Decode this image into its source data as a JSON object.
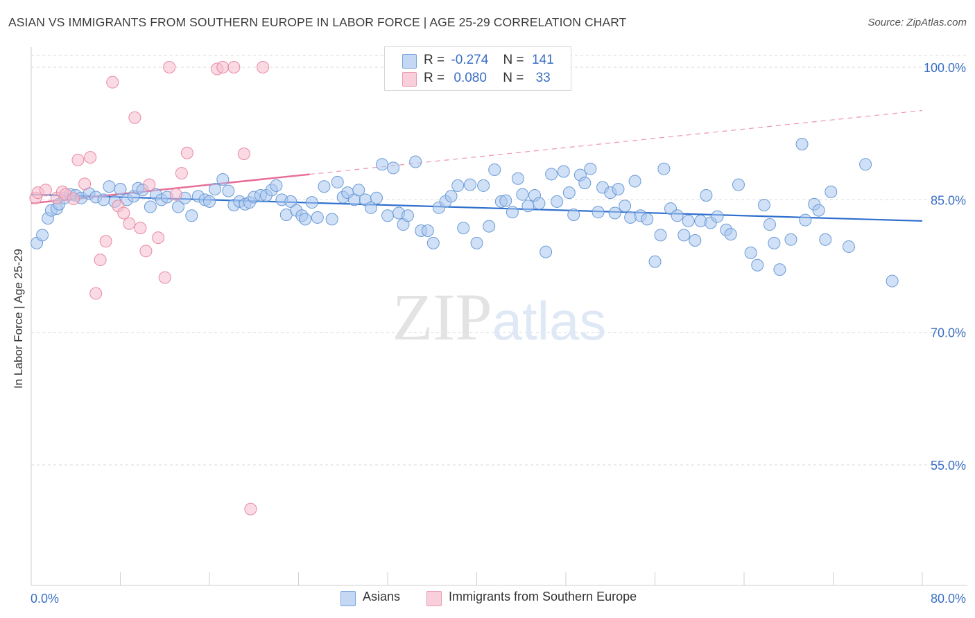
{
  "chart_data": {
    "type": "scatter",
    "title": "ASIAN VS IMMIGRANTS FROM SOUTHERN EUROPE IN LABOR FORCE | AGE 25-29 CORRELATION CHART",
    "source": "Source: ZipAtlas.com",
    "ylabel": "In Labor Force | Age 25-29",
    "xlim": [
      0,
      80
    ],
    "ylim": [
      40,
      102
    ],
    "x_tick_labels": {
      "min": "0.0%",
      "max": "80.0%"
    },
    "y_ticks": [
      {
        "value": 100,
        "label": "100.0%"
      },
      {
        "value": 85,
        "label": "85.0%"
      },
      {
        "value": 70,
        "label": "70.0%"
      },
      {
        "value": 55,
        "label": "55.0%"
      }
    ],
    "grid": true,
    "legend_position": "top-center",
    "watermark": "ZIPatlas",
    "stats": [
      {
        "r_label": "R =",
        "r": "-0.274",
        "n_label": "N =",
        "n": "141"
      },
      {
        "r_label": "R =",
        "r": "0.080",
        "n_label": "N =",
        "n": "33"
      }
    ],
    "series": [
      {
        "name": "Asians",
        "color": "#a9c6ee",
        "edge": "#6b9bd6",
        "trend_color": "#2f6fce",
        "trend": {
          "x0": 0,
          "y0": 85.6,
          "x1": 80,
          "y1": 82.6,
          "dashed_from": null
        },
        "points": [
          [
            0.5,
            80.1
          ],
          [
            1,
            81
          ],
          [
            1.5,
            82.9
          ],
          [
            1.8,
            83.8
          ],
          [
            2.3,
            84
          ],
          [
            2.5,
            84.5
          ],
          [
            3,
            85.2
          ],
          [
            3.5,
            85.6
          ],
          [
            4,
            85.5
          ],
          [
            4.5,
            85.2
          ],
          [
            5.2,
            85.7
          ],
          [
            5.8,
            85.3
          ],
          [
            6.5,
            85
          ],
          [
            7,
            86.5
          ],
          [
            7.5,
            84.8
          ],
          [
            8,
            86.2
          ],
          [
            8.6,
            85
          ],
          [
            9.2,
            85.4
          ],
          [
            9.6,
            86.3
          ],
          [
            10,
            86.1
          ],
          [
            10.7,
            84.2
          ],
          [
            11.2,
            85.6
          ],
          [
            11.7,
            85
          ],
          [
            12.2,
            85.3
          ],
          [
            13.2,
            84.2
          ],
          [
            13.8,
            85.2
          ],
          [
            14.4,
            83.2
          ],
          [
            15,
            85.4
          ],
          [
            15.6,
            85
          ],
          [
            16,
            84.8
          ],
          [
            16.5,
            86.2
          ],
          [
            17.2,
            87.3
          ],
          [
            17.7,
            86
          ],
          [
            18.2,
            84.4
          ],
          [
            18.7,
            84.8
          ],
          [
            19.2,
            84.5
          ],
          [
            19.6,
            84.7
          ],
          [
            20,
            85.3
          ],
          [
            20.6,
            85.5
          ],
          [
            21.1,
            85.5
          ],
          [
            21.6,
            86.1
          ],
          [
            22,
            86.6
          ],
          [
            22.5,
            85
          ],
          [
            22.9,
            83.3
          ],
          [
            23.3,
            84.8
          ],
          [
            23.8,
            83.8
          ],
          [
            24.3,
            83.2
          ],
          [
            24.6,
            82.8
          ],
          [
            25.2,
            84.7
          ],
          [
            25.7,
            83
          ],
          [
            26.3,
            86.5
          ],
          [
            27,
            82.8
          ],
          [
            27.5,
            87
          ],
          [
            28,
            85.3
          ],
          [
            28.4,
            85.8
          ],
          [
            29,
            85
          ],
          [
            29.4,
            86.1
          ],
          [
            30,
            85
          ],
          [
            30.5,
            84.1
          ],
          [
            31,
            85.2
          ],
          [
            31.5,
            89
          ],
          [
            32,
            83.2
          ],
          [
            32.5,
            88.6
          ],
          [
            33,
            83.5
          ],
          [
            33.4,
            82.2
          ],
          [
            33.8,
            83.2
          ],
          [
            34.5,
            89.3
          ],
          [
            35,
            81.5
          ],
          [
            35.6,
            81.5
          ],
          [
            36.1,
            80.1
          ],
          [
            36.6,
            84.1
          ],
          [
            37.2,
            84.8
          ],
          [
            37.7,
            85.4
          ],
          [
            38.3,
            86.6
          ],
          [
            38.8,
            81.8
          ],
          [
            39.4,
            86.7
          ],
          [
            40,
            80.1
          ],
          [
            40.6,
            86.6
          ],
          [
            41.1,
            82
          ],
          [
            41.6,
            88.4
          ],
          [
            42.2,
            84.8
          ],
          [
            42.6,
            84.9
          ],
          [
            43.2,
            83.6
          ],
          [
            43.7,
            87.4
          ],
          [
            44.1,
            85.6
          ],
          [
            44.6,
            84.3
          ],
          [
            45.2,
            85.5
          ],
          [
            45.6,
            84.6
          ],
          [
            46.2,
            79.1
          ],
          [
            46.7,
            87.9
          ],
          [
            47.2,
            84.8
          ],
          [
            47.8,
            88.2
          ],
          [
            48.3,
            85.8
          ],
          [
            48.7,
            83.3
          ],
          [
            49.3,
            87.8
          ],
          [
            49.7,
            86.9
          ],
          [
            50.2,
            88.5
          ],
          [
            50.9,
            83.6
          ],
          [
            51.3,
            86.4
          ],
          [
            52,
            85.8
          ],
          [
            52.4,
            83.5
          ],
          [
            52.7,
            86.2
          ],
          [
            53.3,
            84.3
          ],
          [
            53.8,
            83
          ],
          [
            54.2,
            87.1
          ],
          [
            54.7,
            83.2
          ],
          [
            55.3,
            82.8
          ],
          [
            56,
            78
          ],
          [
            56.5,
            81
          ],
          [
            56.8,
            88.5
          ],
          [
            57.4,
            84
          ],
          [
            58,
            83.2
          ],
          [
            58.6,
            81
          ],
          [
            59,
            82.6
          ],
          [
            59.6,
            80.4
          ],
          [
            60.1,
            82.6
          ],
          [
            60.6,
            85.5
          ],
          [
            61,
            82.4
          ],
          [
            61.6,
            83.1
          ],
          [
            62.4,
            81.6
          ],
          [
            62.8,
            81.1
          ],
          [
            63.5,
            86.7
          ],
          [
            64.6,
            79
          ],
          [
            65.2,
            77.6
          ],
          [
            65.8,
            84.4
          ],
          [
            66.3,
            82.2
          ],
          [
            66.7,
            80.1
          ],
          [
            67.2,
            77.1
          ],
          [
            68.2,
            80.5
          ],
          [
            69.2,
            91.3
          ],
          [
            69.5,
            82.7
          ],
          [
            70.3,
            84.5
          ],
          [
            70.7,
            83.8
          ],
          [
            71.3,
            80.5
          ],
          [
            71.8,
            85.9
          ],
          [
            73.4,
            79.7
          ],
          [
            74.9,
            89
          ],
          [
            77.3,
            75.8
          ]
        ]
      },
      {
        "name": "Immigrants from Southern Europe",
        "color": "#f6bdd0",
        "edge": "#e9889f",
        "trend_color": "#e76f98",
        "trend": {
          "x0": 0,
          "y0": 84.6,
          "x1": 80,
          "y1": 95.1,
          "dashed_from": 25
        },
        "points": [
          [
            0.4,
            85.2
          ],
          [
            0.6,
            85.8
          ],
          [
            1.3,
            86.1
          ],
          [
            2.3,
            85.2
          ],
          [
            2.8,
            85.9
          ],
          [
            3.1,
            85.6
          ],
          [
            3.8,
            85.1
          ],
          [
            4.2,
            89.5
          ],
          [
            4.8,
            86.8
          ],
          [
            5.3,
            89.8
          ],
          [
            5.8,
            74.4
          ],
          [
            6.2,
            78.2
          ],
          [
            6.7,
            80.3
          ],
          [
            7.3,
            98.3
          ],
          [
            7.8,
            84.3
          ],
          [
            8.3,
            83.5
          ],
          [
            8.8,
            82.3
          ],
          [
            9.3,
            94.3
          ],
          [
            9.8,
            81.8
          ],
          [
            10.3,
            79.2
          ],
          [
            10.6,
            86.7
          ],
          [
            11.4,
            80.7
          ],
          [
            12,
            76.2
          ],
          [
            12.4,
            100
          ],
          [
            13,
            85.6
          ],
          [
            13.5,
            88
          ],
          [
            14,
            90.3
          ],
          [
            16.7,
            99.8
          ],
          [
            17.2,
            100
          ],
          [
            18.2,
            100
          ],
          [
            19.1,
            90.2
          ],
          [
            19.7,
            50
          ],
          [
            20.8,
            100
          ]
        ]
      }
    ]
  }
}
